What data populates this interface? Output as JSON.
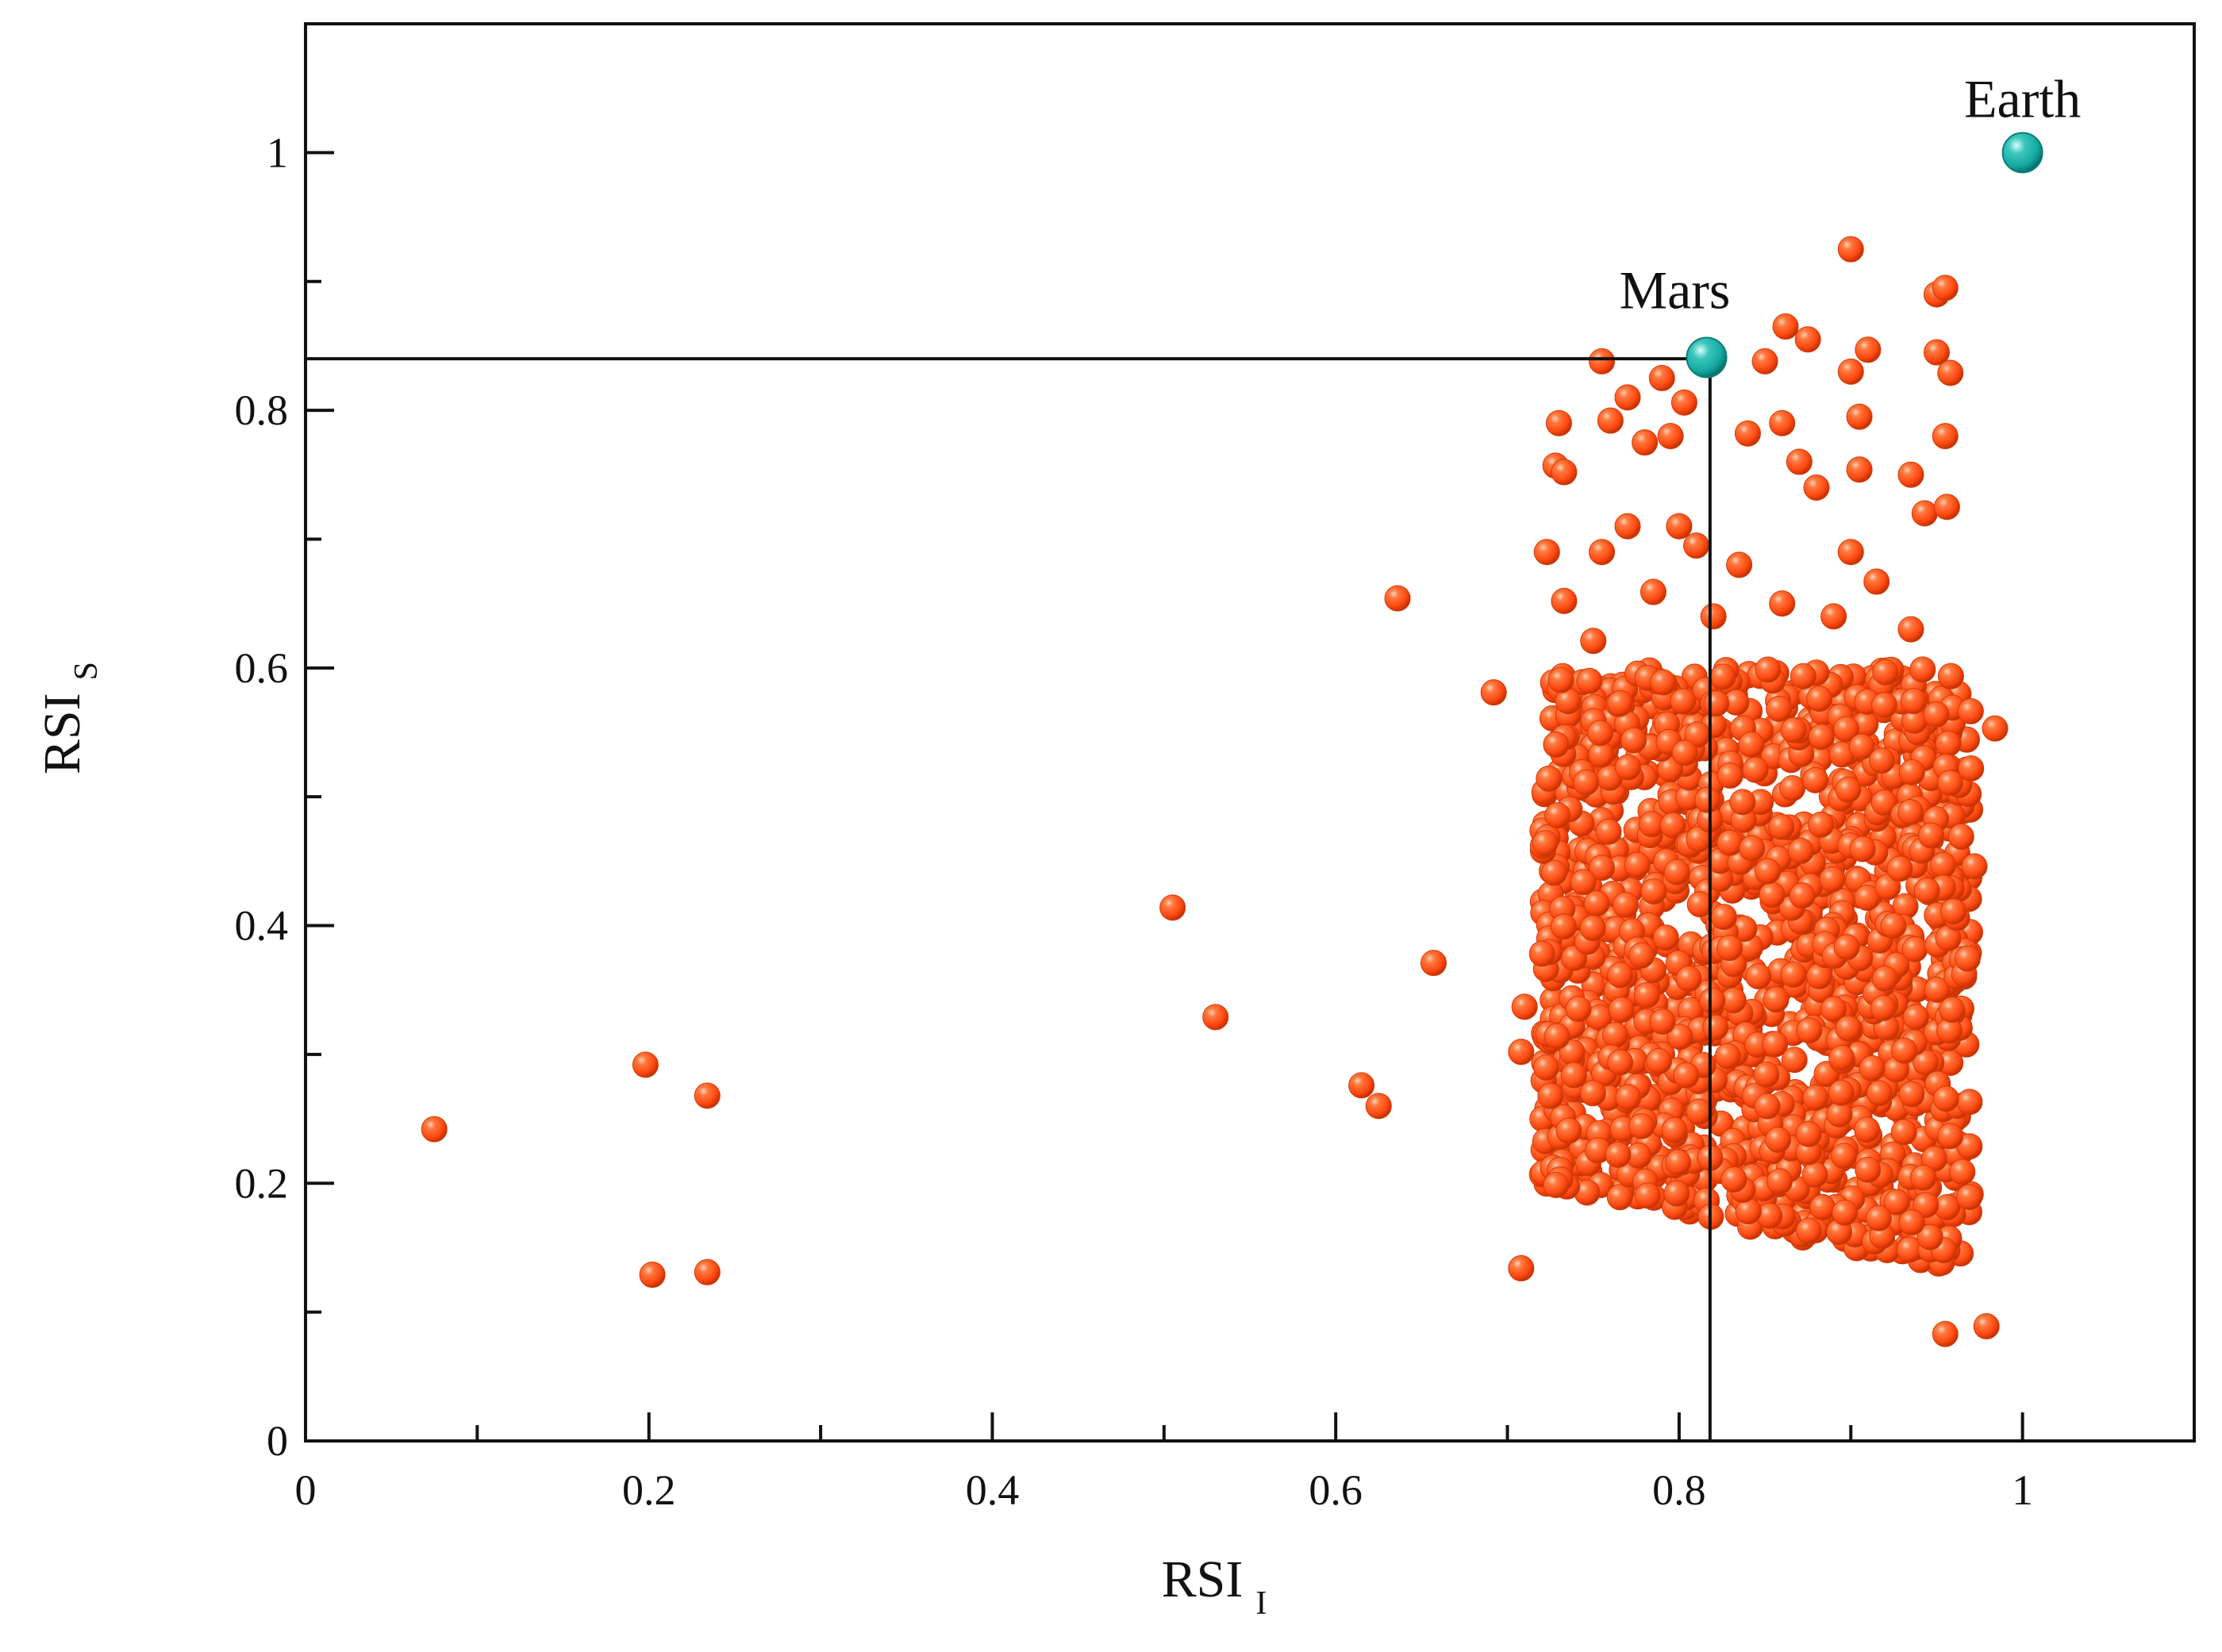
{
  "chart_data": {
    "type": "scatter",
    "title": "",
    "xlabel": "RSI",
    "xlabel_subscript": "I",
    "ylabel": "RSI",
    "ylabel_subscript": "S",
    "xlim": [
      0,
      1.1
    ],
    "ylim": [
      0,
      1.1
    ],
    "x_ticks": [
      0,
      0.2,
      0.4,
      0.6,
      0.8,
      1
    ],
    "x_tick_labels": [
      "0",
      "0.2",
      "0.4",
      "0.6",
      "0.8",
      "1"
    ],
    "y_ticks": [
      0,
      0.2,
      0.4,
      0.6,
      0.8,
      1
    ],
    "y_tick_labels": [
      "0",
      "0.2",
      "0.4",
      "0.6",
      "0.8",
      "1"
    ],
    "x_minor_ticks": [
      0.1,
      0.3,
      0.5,
      0.7,
      0.9
    ],
    "y_minor_ticks": [
      0.1,
      0.3,
      0.5,
      0.7,
      0.9
    ],
    "grid": false,
    "legend": "none",
    "colors": {
      "exoplanets": "#ff4a12",
      "reference": "#14a8a0"
    },
    "reference_lines": {
      "x": 0.818,
      "y": 0.84
    },
    "series": [
      {
        "color": "#ff4a12",
        "cluster": {
          "x_range": [
            0.72,
            0.97
          ],
          "y_range": [
            0.13,
            0.6
          ],
          "approx_count": 1500
        },
        "points": [
          [
            0.075,
            0.242
          ],
          [
            0.198,
            0.292
          ],
          [
            0.234,
            0.268
          ],
          [
            0.202,
            0.129
          ],
          [
            0.234,
            0.131
          ],
          [
            0.505,
            0.414
          ],
          [
            0.53,
            0.329
          ],
          [
            0.615,
            0.276
          ],
          [
            0.625,
            0.26
          ],
          [
            0.636,
            0.654
          ],
          [
            0.657,
            0.371
          ],
          [
            0.692,
            0.581
          ],
          [
            0.708,
            0.134
          ],
          [
            0.708,
            0.302
          ],
          [
            0.71,
            0.337
          ],
          [
            0.955,
            0.083
          ],
          [
            0.979,
            0.089
          ],
          [
            0.984,
            0.553
          ],
          [
            0.97,
            0.522
          ],
          [
            0.972,
            0.446
          ],
          [
            0.9,
            0.925
          ],
          [
            0.95,
            0.89
          ],
          [
            0.955,
            0.895
          ],
          [
            0.862,
            0.865
          ],
          [
            0.875,
            0.855
          ],
          [
            0.91,
            0.847
          ],
          [
            0.9,
            0.83
          ],
          [
            0.755,
            0.838
          ],
          [
            0.79,
            0.825
          ],
          [
            0.803,
            0.806
          ],
          [
            0.85,
            0.838
          ],
          [
            0.86,
            0.79
          ],
          [
            0.905,
            0.795
          ],
          [
            0.95,
            0.845
          ],
          [
            0.958,
            0.829
          ],
          [
            0.73,
            0.79
          ],
          [
            0.76,
            0.792
          ],
          [
            0.77,
            0.81
          ],
          [
            0.78,
            0.775
          ],
          [
            0.795,
            0.78
          ],
          [
            0.84,
            0.782
          ],
          [
            0.87,
            0.76
          ],
          [
            0.905,
            0.754
          ],
          [
            0.935,
            0.75
          ],
          [
            0.955,
            0.78
          ],
          [
            0.728,
            0.757
          ],
          [
            0.733,
            0.752
          ],
          [
            0.755,
            0.69
          ],
          [
            0.77,
            0.71
          ],
          [
            0.8,
            0.71
          ],
          [
            0.81,
            0.695
          ],
          [
            0.88,
            0.74
          ],
          [
            0.9,
            0.69
          ],
          [
            0.943,
            0.72
          ],
          [
            0.956,
            0.725
          ],
          [
            0.723,
            0.69
          ],
          [
            0.733,
            0.652
          ],
          [
            0.75,
            0.621
          ],
          [
            0.785,
            0.659
          ],
          [
            0.82,
            0.64
          ],
          [
            0.835,
            0.68
          ],
          [
            0.86,
            0.65
          ],
          [
            0.89,
            0.64
          ],
          [
            0.915,
            0.667
          ],
          [
            0.935,
            0.63
          ]
        ]
      },
      {
        "name": "Earth",
        "color": "#14a8a0",
        "points": [
          [
            1.0,
            1.0
          ]
        ]
      },
      {
        "name": "Mars",
        "color": "#14a8a0",
        "points": [
          [
            0.816,
            0.841
          ]
        ]
      }
    ],
    "annotations": [
      {
        "text": "Earth",
        "x": 1.0,
        "y": 1.0
      },
      {
        "text": "Mars",
        "x": 0.816,
        "y": 0.841
      }
    ]
  }
}
